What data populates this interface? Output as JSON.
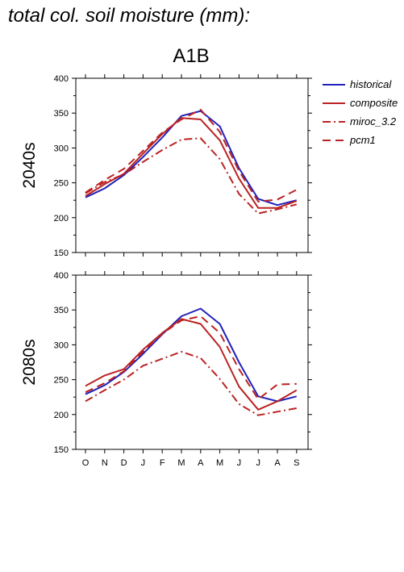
{
  "title": "total col. soil moisture (mm):",
  "scenario": "A1B",
  "legend": [
    {
      "label": "historical",
      "color": "#2222bb",
      "dash": "solid"
    },
    {
      "label": "composite",
      "color": "#bb2222",
      "dash": "solid"
    },
    {
      "label": "miroc_3.2",
      "color": "#bb2222",
      "dash": "dashdot"
    },
    {
      "label": "pcm1",
      "color": "#bb2222",
      "dash": "dash"
    }
  ],
  "chart_data": [
    {
      "type": "line",
      "ylabel": "2040s",
      "categories": [
        "O",
        "N",
        "D",
        "J",
        "F",
        "M",
        "A",
        "M",
        "J",
        "J",
        "A",
        "S"
      ],
      "ylim": [
        150,
        400
      ],
      "yticks": [
        150,
        200,
        250,
        300,
        350,
        400
      ],
      "series": [
        {
          "name": "historical",
          "color": "#2222bb",
          "dash": "solid",
          "values": [
            229,
            242,
            261,
            287,
            315,
            346,
            353,
            331,
            271,
            227,
            218,
            225
          ]
        },
        {
          "name": "composite",
          "color": "#bb2222",
          "dash": "solid",
          "values": [
            231,
            248,
            263,
            292,
            320,
            343,
            341,
            311,
            256,
            214,
            214,
            224
          ]
        },
        {
          "name": "miroc_3.2",
          "color": "#bb2222",
          "dash": "dashdot",
          "values": [
            235,
            251,
            262,
            280,
            297,
            312,
            314,
            284,
            234,
            206,
            212,
            219
          ]
        },
        {
          "name": "pcm1",
          "color": "#bb2222",
          "dash": "dash",
          "values": [
            236,
            254,
            270,
            296,
            322,
            341,
            355,
            323,
            267,
            223,
            226,
            240
          ]
        }
      ]
    },
    {
      "type": "line",
      "ylabel": "2080s",
      "categories": [
        "O",
        "N",
        "D",
        "J",
        "F",
        "M",
        "A",
        "M",
        "J",
        "J",
        "A",
        "S"
      ],
      "ylim": [
        150,
        400
      ],
      "yticks": [
        150,
        200,
        250,
        300,
        350,
        400
      ],
      "series": [
        {
          "name": "historical",
          "color": "#2222bb",
          "dash": "solid",
          "values": [
            229,
            242,
            261,
            287,
            315,
            341,
            352,
            330,
            275,
            226,
            219,
            226
          ]
        },
        {
          "name": "composite",
          "color": "#bb2222",
          "dash": "solid",
          "values": [
            241,
            256,
            265,
            293,
            317,
            337,
            330,
            297,
            240,
            207,
            219,
            235
          ]
        },
        {
          "name": "miroc_3.2",
          "color": "#bb2222",
          "dash": "dashdot",
          "values": [
            219,
            235,
            250,
            270,
            280,
            290,
            281,
            251,
            215,
            199,
            204,
            209
          ]
        },
        {
          "name": "pcm1",
          "color": "#bb2222",
          "dash": "dash",
          "values": [
            232,
            245,
            262,
            290,
            316,
            335,
            341,
            317,
            265,
            222,
            243,
            244
          ]
        }
      ]
    }
  ]
}
